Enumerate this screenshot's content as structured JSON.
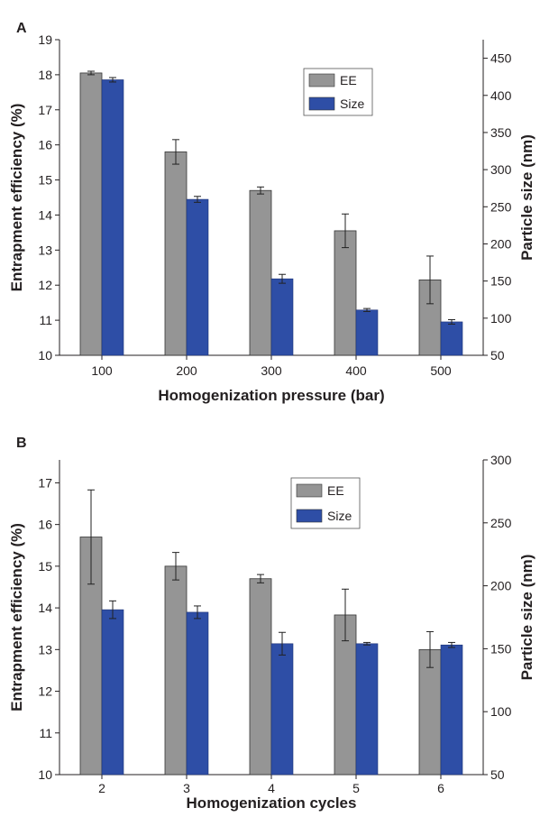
{
  "colors": {
    "ee": "#959595",
    "size": "#2e4ea6",
    "axis": "#231f20"
  },
  "chart_data": [
    {
      "type": "bar",
      "panel_label": "A",
      "categories": [
        "100",
        "200",
        "300",
        "400",
        "500"
      ],
      "xlabel": "Homogenization pressure (bar)",
      "ylabel_left": "Entrapment efficiency (%)",
      "ylabel_right": "Particle size (nm)",
      "ylim_left": [
        10,
        19
      ],
      "ylim_right": [
        50,
        475
      ],
      "left_ticks": [
        10,
        11,
        12,
        13,
        14,
        15,
        16,
        17,
        18,
        19
      ],
      "right_ticks": [
        50,
        100,
        150,
        200,
        250,
        300,
        350,
        400,
        450
      ],
      "legend_position": "top-right",
      "series": [
        {
          "name": "EE",
          "axis": "left",
          "values": [
            18.05,
            15.8,
            14.7,
            13.55,
            12.15
          ],
          "errors": [
            0.05,
            0.35,
            0.1,
            0.48,
            0.68
          ]
        },
        {
          "name": "Size",
          "axis": "right",
          "values": [
            421,
            260,
            153,
            111,
            95
          ],
          "errors": [
            3,
            4,
            6,
            2,
            3
          ]
        }
      ]
    },
    {
      "type": "bar",
      "panel_label": "B",
      "categories": [
        "2",
        "3",
        "4",
        "5",
        "6"
      ],
      "xlabel": "Homogenization cycles",
      "ylabel_left": "Entrapment efficiency (%)",
      "ylabel_right": "Particle size (nm)",
      "ylim_left": [
        10,
        17.55
      ],
      "ylim_right": [
        50,
        300
      ],
      "left_ticks": [
        10,
        11,
        12,
        13,
        14,
        15,
        16,
        17
      ],
      "right_ticks": [
        50,
        100,
        150,
        200,
        250,
        300
      ],
      "legend_position": "top-right",
      "series": [
        {
          "name": "EE",
          "axis": "left",
          "values": [
            15.7,
            15.0,
            14.7,
            13.83,
            13.0
          ],
          "errors": [
            1.13,
            0.33,
            0.1,
            0.62,
            0.43
          ]
        },
        {
          "name": "Size",
          "axis": "right",
          "values": [
            181,
            179,
            154,
            154,
            153
          ],
          "errors": [
            7,
            5,
            9,
            1,
            2
          ]
        }
      ]
    }
  ]
}
